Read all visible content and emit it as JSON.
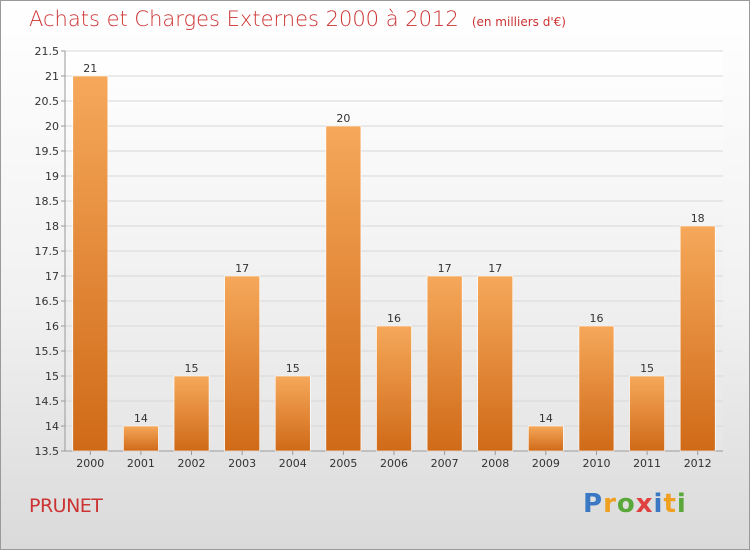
{
  "page": {
    "title": "Achats et Charges Externes 2000 à 2012",
    "subtitle": "(en milliers d'€)",
    "commune": "PRUNET",
    "logo": {
      "letters": [
        "P",
        "r",
        "o",
        "x",
        "i",
        "t",
        "i"
      ],
      "colors": [
        "#3b78c4",
        "#f0a020",
        "#5aa83a",
        "#e04040",
        "#3b78c4",
        "#f0a020",
        "#5aa83a"
      ]
    }
  },
  "chart_data": {
    "type": "bar",
    "title": "Achats et Charges Externes 2000 à 2012",
    "subtitle": "(en milliers d'€)",
    "categories": [
      "2000",
      "2001",
      "2002",
      "2003",
      "2004",
      "2005",
      "2006",
      "2007",
      "2008",
      "2009",
      "2010",
      "2011",
      "2012"
    ],
    "values": [
      21,
      14,
      15,
      17,
      15,
      20,
      16,
      17,
      17,
      14,
      16,
      15,
      18
    ],
    "data_labels": [
      "21",
      "14",
      "15",
      "17",
      "15",
      "20",
      "16",
      "17",
      "17",
      "14",
      "16",
      "15",
      "18"
    ],
    "ylim": [
      13.5,
      21.5
    ],
    "yticks": [
      13.5,
      14,
      14.5,
      15,
      15.5,
      16,
      16.5,
      17,
      17.5,
      18,
      18.5,
      19,
      19.5,
      20,
      20.5,
      21,
      21.5
    ],
    "ytick_labels": [
      "13.5",
      "14",
      "14.5",
      "15",
      "15.5",
      "16",
      "16.5",
      "17",
      "17.5",
      "18",
      "18.5",
      "19",
      "19.5",
      "20",
      "20.5",
      "21",
      "21.5"
    ],
    "grid": true,
    "bar_color": "#f0a050",
    "text_color": "#cc3333"
  }
}
